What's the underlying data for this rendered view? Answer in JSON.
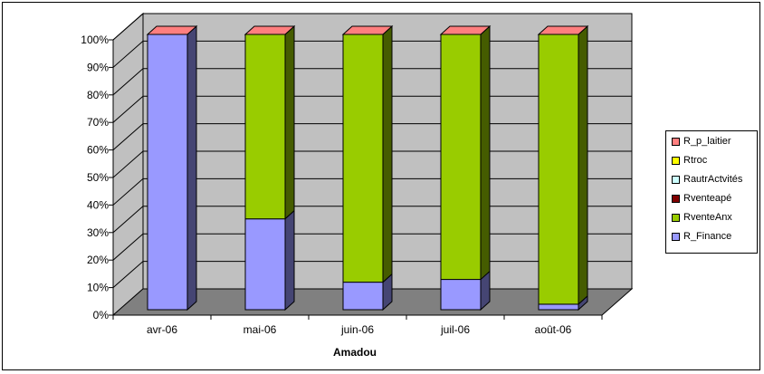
{
  "chart_data": {
    "type": "bar",
    "stacked": "percent",
    "three_d": true,
    "title": "",
    "xlabel": "Amadou",
    "ylabel": "",
    "ylim": [
      0,
      100
    ],
    "yticks": [
      "0%",
      "10%",
      "20%",
      "30%",
      "40%",
      "50%",
      "60%",
      "70%",
      "80%",
      "90%",
      "100%"
    ],
    "categories": [
      "avr-06",
      "mai-06",
      "juin-06",
      "juil-06",
      "août-06"
    ],
    "series": [
      {
        "name": "R_Finance",
        "color": "#9999ff",
        "values": [
          100,
          33,
          10,
          11,
          2
        ]
      },
      {
        "name": "RventeAnx",
        "color": "#99cc00",
        "values": [
          0,
          67,
          90,
          89,
          98
        ]
      },
      {
        "name": "Rventeapé",
        "color": "#800000",
        "values": [
          0,
          0,
          0,
          0,
          0
        ]
      },
      {
        "name": "RautrActvités",
        "color": "#ccffff",
        "values": [
          0,
          0,
          0,
          0,
          0
        ]
      },
      {
        "name": "Rtroc",
        "color": "#ffff00",
        "values": [
          0,
          0,
          0,
          0,
          0
        ]
      },
      {
        "name": "R_p_laitier",
        "color": "#ff7f7f",
        "values": [
          0,
          0,
          0,
          0,
          0
        ]
      }
    ],
    "grid": true,
    "wall_color": "#c0c0c0",
    "floor_color": "#808080",
    "legend_position": "right"
  }
}
